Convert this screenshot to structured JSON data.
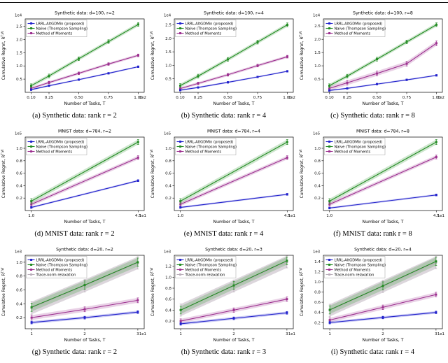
{
  "page": {
    "background": "#ffffff"
  },
  "captions": [
    "(a) Synthetic data: rank r = 2",
    "(b) Synthetic data: rank r = 4",
    "(c) Synthetic data: rank r = 8",
    "(d) MNIST data: rank r = 2",
    "(e) MNIST data: rank r = 4",
    "(f) MNIST data: rank r = 8",
    "(g) Synthetic data: rank r = 2",
    "(h) Synthetic data: rank r = 3",
    "(i) Synthetic data: rank r = 4"
  ],
  "colors": {
    "lrrl": "#2222cc",
    "naive": "#228b22",
    "mom": "#9c2f8f",
    "trace": "#b9adb9"
  },
  "chart_data": [
    {
      "type": "line",
      "title": "Synthetic data: d=100, r=2",
      "xlabel": "Number of Tasks, T",
      "ylabel": "Cumulative Regret, R",
      "ylabel_sup": "T,W",
      "x_offset": "1e2",
      "y_offset": "1e4",
      "x": [
        0.1,
        0.25,
        0.5,
        0.75,
        1.0
      ],
      "xlim": [
        0.05,
        1.05
      ],
      "ylim": [
        0,
        2.78
      ],
      "xticks": [
        0.1,
        0.25,
        0.5,
        0.75,
        1.0
      ],
      "xtick_labels": [
        "0.10",
        "0.25",
        "0.50",
        "0.75",
        "1.00"
      ],
      "yticks": [
        0.5,
        1.0,
        1.5,
        2.0,
        2.5
      ],
      "ytick_labels": [
        "0.5",
        "1.0",
        "1.5",
        "2.0",
        "2.5"
      ],
      "series": [
        {
          "name": "LRRL-AltGDMin (proposed)",
          "color": "#2222cc",
          "values": [
            0.1,
            0.25,
            0.48,
            0.72,
            0.97
          ],
          "band": 0.03
        },
        {
          "name": "Naive (Thompson Sampling)",
          "color": "#228b22",
          "values": [
            0.25,
            0.62,
            1.27,
            1.92,
            2.57
          ],
          "band": 0.07
        },
        {
          "name": "Method of Moments",
          "color": "#9c2f8f",
          "values": [
            0.15,
            0.37,
            0.72,
            1.07,
            1.4
          ],
          "band": 0.05
        }
      ]
    },
    {
      "type": "line",
      "title": "Synthetic data: d=100, r=4",
      "xlabel": "Number of Tasks, T",
      "ylabel": "Cumulative Regret, R",
      "ylabel_sup": "T,W",
      "x_offset": "1e2",
      "y_offset": "1e4",
      "x": [
        0.1,
        0.25,
        0.5,
        0.75,
        1.0
      ],
      "xlim": [
        0.05,
        1.05
      ],
      "ylim": [
        0,
        2.72
      ],
      "xticks": [
        0.1,
        0.25,
        0.5,
        0.75,
        1.0
      ],
      "xtick_labels": [
        "0.10",
        "0.25",
        "0.50",
        "0.75",
        "1.00"
      ],
      "yticks": [
        0.5,
        1.0,
        1.5,
        2.0,
        2.5
      ],
      "ytick_labels": [
        "0.5",
        "1.0",
        "1.5",
        "2.0",
        "2.5"
      ],
      "series": [
        {
          "name": "LRRL-AltGDMin (proposed)",
          "color": "#2222cc",
          "values": [
            0.08,
            0.18,
            0.37,
            0.57,
            0.78
          ],
          "band": 0.03
        },
        {
          "name": "Naive (Thompson Sampling)",
          "color": "#228b22",
          "values": [
            0.25,
            0.6,
            1.22,
            1.86,
            2.5
          ],
          "band": 0.07
        },
        {
          "name": "Method of Moments",
          "color": "#9c2f8f",
          "values": [
            0.14,
            0.33,
            0.65,
            0.99,
            1.32
          ],
          "band": 0.05
        }
      ]
    },
    {
      "type": "line",
      "title": "Synthetic data: d=100, r=8",
      "xlabel": "Number of Tasks, T",
      "ylabel": "Cumulative Regret, R",
      "ylabel_sup": "T,W",
      "x_offset": "1e2",
      "y_offset": "1e4",
      "x": [
        0.1,
        0.25,
        0.5,
        0.75,
        1.0
      ],
      "xlim": [
        0.05,
        1.05
      ],
      "ylim": [
        0,
        2.77
      ],
      "xticks": [
        0.1,
        0.25,
        0.5,
        0.75,
        1.0
      ],
      "xtick_labels": [
        "0.10",
        "0.25",
        "0.50",
        "0.75",
        "1.00"
      ],
      "yticks": [
        0.5,
        1.0,
        1.5,
        2.0,
        2.5
      ],
      "ytick_labels": [
        "0.5",
        "1.0",
        "1.5",
        "2.0",
        "2.5"
      ],
      "series": [
        {
          "name": "LRRL-AltGDMin (proposed)",
          "color": "#2222cc",
          "values": [
            0.07,
            0.15,
            0.31,
            0.47,
            0.64
          ],
          "band": 0.03
        },
        {
          "name": "Naive (Thompson Sampling)",
          "color": "#228b22",
          "values": [
            0.25,
            0.61,
            1.25,
            1.9,
            2.55
          ],
          "band": 0.07
        },
        {
          "name": "Method of Moments",
          "color": "#9c2f8f",
          "values": [
            0.15,
            0.36,
            0.71,
            1.08,
            1.85
          ],
          "band": 0.09
        }
      ]
    },
    {
      "type": "line",
      "title": "MNIST data: d=784, r=2",
      "xlabel": "Number of Tasks, T",
      "ylabel": "Cumulative Regret, R",
      "ylabel_sup": "T,W",
      "x_offset": "1e1",
      "y_offset": "1e5",
      "x": [
        1.0,
        4.5
      ],
      "xlim": [
        0.8,
        4.7
      ],
      "ylim": [
        0,
        1.18
      ],
      "xticks": [
        1.0,
        4.5
      ],
      "xtick_labels": [
        "1.0",
        "4.5"
      ],
      "yticks": [
        0.2,
        0.4,
        0.6,
        0.8,
        1.0
      ],
      "ytick_labels": [
        "0.2",
        "0.4",
        "0.6",
        "0.8",
        "1.0"
      ],
      "series": [
        {
          "name": "LRRL-AltGDMin (proposed)",
          "color": "#2222cc",
          "values": [
            0.05,
            0.48
          ],
          "band": 0.015
        },
        {
          "name": "Naive (Thompson Sampling)",
          "color": "#228b22",
          "values": [
            0.15,
            1.1
          ],
          "band": 0.04
        },
        {
          "name": "Method of Moments",
          "color": "#9c2f8f",
          "values": [
            0.1,
            0.85
          ],
          "band": 0.03
        }
      ]
    },
    {
      "type": "line",
      "title": "MNIST data: d=784, r=4",
      "xlabel": "Number of Tasks, T",
      "ylabel": "Cumulative Regret, R",
      "ylabel_sup": "T,W",
      "x_offset": "1e1",
      "y_offset": "1e5",
      "x": [
        1.0,
        4.5
      ],
      "xlim": [
        0.8,
        4.7
      ],
      "ylim": [
        0,
        1.18
      ],
      "xticks": [
        1.0,
        4.5
      ],
      "xtick_labels": [
        "1.0",
        "4.5"
      ],
      "yticks": [
        0.2,
        0.4,
        0.6,
        0.8,
        1.0
      ],
      "ytick_labels": [
        "0.2",
        "0.4",
        "0.6",
        "0.8",
        "1.0"
      ],
      "series": [
        {
          "name": "LRRL-AltGDMin (proposed)",
          "color": "#2222cc",
          "values": [
            0.05,
            0.26
          ],
          "band": 0.015
        },
        {
          "name": "Naive (Thompson Sampling)",
          "color": "#228b22",
          "values": [
            0.15,
            1.1
          ],
          "band": 0.04
        },
        {
          "name": "Method of Moments",
          "color": "#9c2f8f",
          "values": [
            0.1,
            0.85
          ],
          "band": 0.03
        }
      ]
    },
    {
      "type": "line",
      "title": "MNIST data: d=784, r=8",
      "xlabel": "Number of Tasks, T",
      "ylabel": "Cumulative Regret, R",
      "ylabel_sup": "T,W",
      "x_offset": "1e1",
      "y_offset": "1e5",
      "x": [
        1.0,
        4.5
      ],
      "xlim": [
        0.8,
        4.7
      ],
      "ylim": [
        0,
        1.18
      ],
      "xticks": [
        1.0,
        4.5
      ],
      "xtick_labels": [
        "1.0",
        "4.5"
      ],
      "yticks": [
        0.2,
        0.4,
        0.6,
        0.8,
        1.0
      ],
      "ytick_labels": [
        "0.2",
        "0.4",
        "0.6",
        "0.8",
        "1.0"
      ],
      "series": [
        {
          "name": "LRRL-AltGDMin (proposed)",
          "color": "#2222cc",
          "values": [
            0.04,
            0.25
          ],
          "band": 0.015
        },
        {
          "name": "Naive (Thompson Sampling)",
          "color": "#228b22",
          "values": [
            0.15,
            1.1
          ],
          "band": 0.04
        },
        {
          "name": "Method of Moments",
          "color": "#9c2f8f",
          "values": [
            0.1,
            0.86
          ],
          "band": 0.03
        }
      ]
    },
    {
      "type": "line",
      "title": "Synthetic data: d=20, r=2",
      "xlabel": "Number of Tasks, T",
      "ylabel": "Cumulative Regret, R",
      "ylabel_sup": "T,W",
      "x_offset": "1e1",
      "y_offset": "1e3",
      "x": [
        1,
        2,
        3
      ],
      "xlim": [
        0.88,
        3.12
      ],
      "ylim": [
        0.04,
        1.1
      ],
      "xticks": [
        1,
        2,
        3
      ],
      "xtick_labels": [
        "1",
        "2",
        "3"
      ],
      "yticks": [
        0.2,
        0.4,
        0.6,
        0.8,
        1.0
      ],
      "ytick_labels": [
        "0.2",
        "0.4",
        "0.6",
        "0.8",
        "1.0"
      ],
      "series": [
        {
          "name": "LRRL-AltGDMin (proposed)",
          "color": "#2222cc",
          "values": [
            0.13,
            0.2,
            0.28
          ],
          "band": 0.02
        },
        {
          "name": "Naive (Thompson Sampling)",
          "color": "#228b22",
          "values": [
            0.35,
            0.67,
            1.0
          ],
          "band": 0.06
        },
        {
          "name": "Method of Moments",
          "color": "#9c2f8f",
          "values": [
            0.2,
            0.32,
            0.45
          ],
          "band": 0.035
        },
        {
          "name": "Trace-norm relaxation",
          "color": "#b9adb9",
          "values": [
            0.34,
            0.66,
            0.99
          ],
          "band": 0.09,
          "band_alpha": 0.5
        }
      ]
    },
    {
      "type": "line",
      "title": "Synthetic data: d=20, r=3",
      "xlabel": "Number of Tasks, T",
      "ylabel": "Cumulative Regret, R",
      "ylabel_sup": "T,W",
      "x_offset": "1e1",
      "y_offset": "1e3",
      "x": [
        1,
        2,
        3
      ],
      "xlim": [
        0.88,
        3.12
      ],
      "ylim": [
        0.06,
        1.4
      ],
      "xticks": [
        1,
        2,
        3
      ],
      "xtick_labels": [
        "1",
        "2",
        "3"
      ],
      "yticks": [
        0.2,
        0.4,
        0.6,
        0.8,
        1.0,
        1.2
      ],
      "ytick_labels": [
        "0.2",
        "0.4",
        "0.6",
        "0.8",
        "1.0",
        "1.2"
      ],
      "series": [
        {
          "name": "LRRL-AltGDMin (proposed)",
          "color": "#2222cc",
          "values": [
            0.15,
            0.25,
            0.35
          ],
          "band": 0.025
        },
        {
          "name": "Naive (Thompson Sampling)",
          "color": "#228b22",
          "values": [
            0.4,
            0.85,
            1.3
          ],
          "band": 0.07
        },
        {
          "name": "Method of Moments",
          "color": "#9c2f8f",
          "values": [
            0.2,
            0.4,
            0.6
          ],
          "band": 0.04
        },
        {
          "name": "Trace-norm relaxation",
          "color": "#b9adb9",
          "values": [
            0.4,
            0.84,
            1.28
          ],
          "band": 0.11,
          "band_alpha": 0.5
        }
      ]
    },
    {
      "type": "line",
      "title": "Synthetic data: d=20, r=4",
      "xlabel": "Number of Tasks, T",
      "ylabel": "Cumulative Regret, R",
      "ylabel_sup": "T,W",
      "x_offset": "1e1",
      "y_offset": "1e3",
      "x": [
        1,
        2,
        3
      ],
      "xlim": [
        0.88,
        3.12
      ],
      "ylim": [
        0.08,
        1.52
      ],
      "xticks": [
        1,
        2,
        3
      ],
      "xtick_labels": [
        "1",
        "2",
        "3"
      ],
      "yticks": [
        0.2,
        0.4,
        0.6,
        0.8,
        1.0,
        1.2,
        1.4
      ],
      "ytick_labels": [
        "0.2",
        "0.4",
        "0.6",
        "0.8",
        "1.0",
        "1.2",
        "1.4"
      ],
      "series": [
        {
          "name": "LRRL-AltGDMin (proposed)",
          "color": "#2222cc",
          "values": [
            0.2,
            0.3,
            0.4
          ],
          "band": 0.025
        },
        {
          "name": "Naive (Thompson Sampling)",
          "color": "#228b22",
          "values": [
            0.45,
            0.92,
            1.4
          ],
          "band": 0.08
        },
        {
          "name": "Method of Moments",
          "color": "#9c2f8f",
          "values": [
            0.25,
            0.5,
            0.75
          ],
          "band": 0.045
        },
        {
          "name": "Trace-norm relaxation",
          "color": "#b9adb9",
          "values": [
            0.44,
            0.91,
            1.38
          ],
          "band": 0.12,
          "band_alpha": 0.5
        }
      ]
    }
  ]
}
